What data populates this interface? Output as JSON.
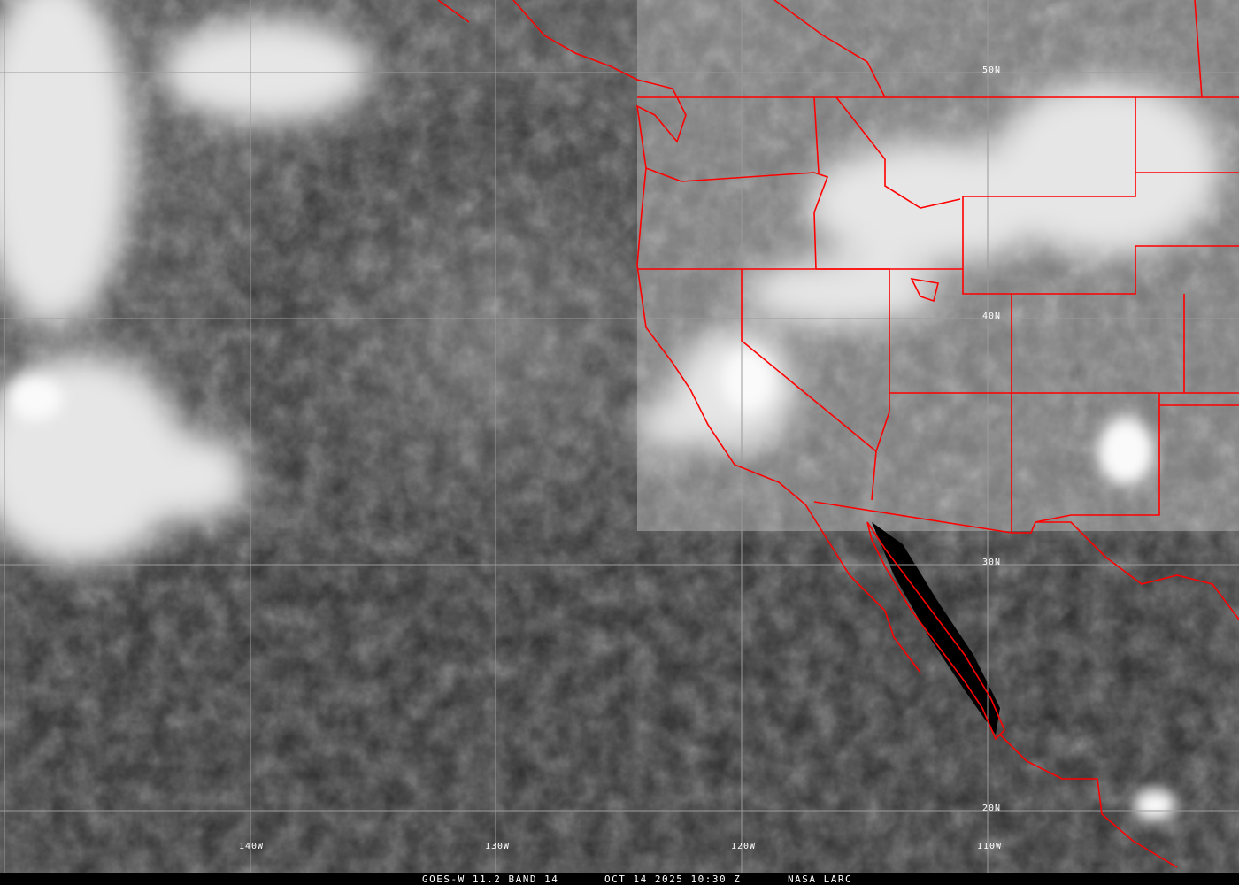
{
  "map": {
    "view": "satellite infrared imagery",
    "border_color": "#ff0000",
    "grid_color": "#9a9a9a",
    "longitude_labels": [
      "140W",
      "130W",
      "120W",
      "110W"
    ],
    "latitude_labels": [
      "50N",
      "40N",
      "30N",
      "20N"
    ]
  },
  "caption": {
    "product": "GOES-W 11.2 BAND 14",
    "datetime": "OCT 14 2025 10:30 Z",
    "source": "NASA LARC"
  }
}
